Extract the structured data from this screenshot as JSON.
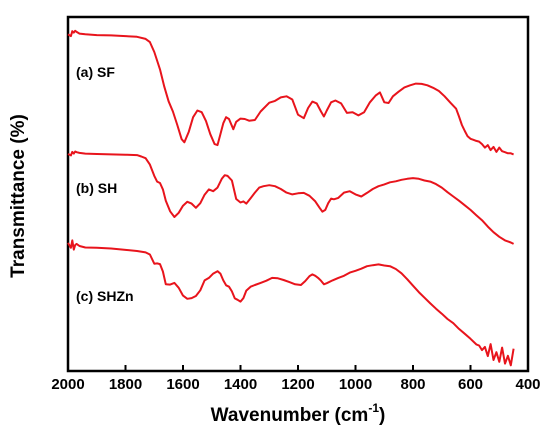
{
  "chart_data": {
    "type": "line",
    "title": "",
    "xlabel": "Wavenumber (cm",
    "xlabel_sup": "-1",
    "xlabel_close": ")",
    "ylabel": "Transmittance (%)",
    "xlim": [
      2000,
      400
    ],
    "x_reversed": true,
    "ylim": [
      0,
      100
    ],
    "y_ticks_shown": false,
    "grid": false,
    "legend": "none",
    "line_color": "#e8141c",
    "x_ticks": [
      2000,
      1800,
      1600,
      1400,
      1200,
      1000,
      800,
      600,
      400
    ],
    "series": [
      {
        "name": "(a) SF",
        "x": [
          2000,
          1990,
          1985,
          1980,
          1975,
          1970,
          1960,
          1940,
          1900,
          1850,
          1800,
          1760,
          1730,
          1715,
          1700,
          1680,
          1665,
          1650,
          1635,
          1620,
          1605,
          1595,
          1580,
          1565,
          1550,
          1535,
          1520,
          1505,
          1490,
          1480,
          1470,
          1460,
          1450,
          1440,
          1425,
          1415,
          1400,
          1385,
          1370,
          1350,
          1330,
          1300,
          1280,
          1260,
          1240,
          1220,
          1200,
          1180,
          1165,
          1150,
          1135,
          1120,
          1110,
          1100,
          1085,
          1070,
          1050,
          1030,
          1010,
          990,
          970,
          950,
          930,
          915,
          900,
          885,
          870,
          850,
          830,
          810,
          790,
          770,
          750,
          730,
          710,
          690,
          670,
          650,
          640,
          630,
          620,
          610,
          600,
          590,
          580,
          570,
          560,
          550,
          540,
          530,
          520,
          510,
          500,
          490,
          480,
          470,
          460,
          450
        ],
        "values": [
          95.1,
          94.6,
          96,
          95.6,
          96.1,
          95.8,
          95.3,
          95.1,
          94.9,
          94.8,
          94.6,
          94.4,
          93.8,
          92.9,
          90.1,
          85.2,
          80.3,
          76.2,
          73.3,
          69.5,
          65.5,
          64.6,
          67.6,
          71.7,
          73.6,
          73.1,
          70.6,
          66.9,
          64.1,
          63.8,
          66.9,
          70,
          71.7,
          71.2,
          68.3,
          70.4,
          71.3,
          71.2,
          70.7,
          70.9,
          73.3,
          75.8,
          76.3,
          77.3,
          77.6,
          76.7,
          72.4,
          71.4,
          74.3,
          76.1,
          75.6,
          73.3,
          71.9,
          73.6,
          75.9,
          76.4,
          75.6,
          72.9,
          73.1,
          72.2,
          73.1,
          75.9,
          77.8,
          78.7,
          75.9,
          75.7,
          77.6,
          78.9,
          80.1,
          80.7,
          81.2,
          81.1,
          80.7,
          80,
          79.1,
          77.6,
          75.8,
          74.1,
          71.9,
          69.5,
          67.8,
          66.3,
          65.6,
          65.3,
          65,
          64.8,
          64.1,
          63.1,
          63.8,
          62.4,
          63.3,
          61.9,
          63.1,
          62.1,
          61.8,
          61.5,
          61.5,
          61.2
        ]
      },
      {
        "name": "(b) SH",
        "x": [
          2000,
          1990,
          1985,
          1980,
          1975,
          1970,
          1960,
          1940,
          1900,
          1850,
          1800,
          1760,
          1745,
          1730,
          1715,
          1700,
          1690,
          1680,
          1670,
          1660,
          1645,
          1630,
          1615,
          1600,
          1585,
          1570,
          1555,
          1540,
          1525,
          1510,
          1495,
          1480,
          1465,
          1455,
          1445,
          1430,
          1415,
          1400,
          1390,
          1380,
          1365,
          1350,
          1335,
          1320,
          1300,
          1280,
          1260,
          1240,
          1220,
          1200,
          1180,
          1160,
          1140,
          1125,
          1115,
          1105,
          1095,
          1085,
          1075,
          1060,
          1040,
          1020,
          1000,
          980,
          960,
          940,
          920,
          900,
          880,
          860,
          840,
          820,
          800,
          780,
          760,
          740,
          720,
          700,
          680,
          660,
          640,
          620,
          600,
          580,
          560,
          540,
          520,
          500,
          480,
          460,
          450
        ],
        "values": [
          61.3,
          60.9,
          61.9,
          61.4,
          62,
          61.8,
          61.6,
          61.4,
          61.3,
          61.2,
          61.1,
          61,
          60.6,
          60.1,
          58.3,
          55.1,
          53.5,
          53.1,
          51.3,
          48.1,
          45.1,
          43.5,
          44.7,
          46.7,
          47.8,
          47.3,
          46.1,
          47.4,
          49.8,
          51.3,
          50.8,
          51.8,
          54.3,
          55.3,
          55.1,
          53.8,
          48.6,
          47.6,
          47.9,
          47.3,
          48.8,
          50.4,
          51.8,
          52.2,
          52.5,
          52.2,
          51.4,
          50.4,
          49.9,
          50.2,
          50.3,
          49.5,
          47.9,
          46.1,
          45,
          45.5,
          47.4,
          48.7,
          48.5,
          48.9,
          50.4,
          50.8,
          49.9,
          49.3,
          50.3,
          51.4,
          52.2,
          52.7,
          53.3,
          53.6,
          54,
          54.3,
          54.5,
          54.3,
          53.8,
          53.5,
          52.8,
          51.8,
          50.5,
          49.3,
          48.1,
          46.8,
          45.5,
          44,
          42.6,
          40.8,
          39.2,
          37.9,
          36.9,
          36.3,
          35.9
        ]
      },
      {
        "name": "(c) SHZn",
        "x": [
          2000,
          1990,
          1985,
          1980,
          1975,
          1970,
          1960,
          1940,
          1900,
          1850,
          1800,
          1760,
          1730,
          1715,
          1700,
          1690,
          1680,
          1670,
          1660,
          1645,
          1630,
          1615,
          1600,
          1585,
          1570,
          1555,
          1540,
          1525,
          1510,
          1495,
          1480,
          1470,
          1460,
          1450,
          1440,
          1430,
          1420,
          1410,
          1400,
          1390,
          1380,
          1365,
          1350,
          1330,
          1310,
          1290,
          1270,
          1250,
          1230,
          1210,
          1190,
          1175,
          1160,
          1150,
          1140,
          1130,
          1120,
          1110,
          1100,
          1080,
          1060,
          1040,
          1020,
          1000,
          980,
          960,
          940,
          920,
          900,
          880,
          860,
          840,
          820,
          800,
          780,
          760,
          740,
          720,
          700,
          680,
          660,
          640,
          620,
          600,
          580,
          570,
          560,
          550,
          540,
          530,
          520,
          510,
          500,
          490,
          480,
          470,
          460,
          450
        ],
        "values": [
          36.2,
          34.8,
          36.9,
          34.3,
          35.6,
          35.9,
          35.3,
          34.9,
          34.8,
          34.6,
          34.2,
          33.9,
          33.5,
          32.9,
          30.3,
          30.4,
          30.2,
          28.1,
          24.5,
          24.4,
          24.9,
          23.5,
          21.3,
          20.4,
          20.6,
          21.2,
          22.8,
          25.6,
          26.3,
          27.5,
          28.2,
          27.5,
          25.6,
          24.2,
          23.8,
          22.5,
          20.5,
          20.1,
          19.6,
          20.6,
          22.7,
          23.8,
          24.3,
          24.9,
          25.5,
          26.3,
          26.2,
          25.7,
          25.1,
          24.5,
          24.3,
          25.4,
          26.8,
          27.3,
          26.9,
          26.3,
          25.5,
          24.5,
          24.8,
          25.6,
          26.3,
          26.9,
          27.8,
          28.3,
          28.9,
          29.6,
          29.9,
          30.1,
          29.8,
          29.6,
          28.8,
          27.6,
          25.9,
          24.1,
          22.3,
          20.7,
          19.1,
          17.6,
          16.2,
          14.7,
          13.5,
          11.9,
          10.5,
          9.1,
          7.5,
          7.2,
          5.9,
          6.8,
          4.2,
          7.6,
          3.1,
          5.3,
          2.6,
          6.6,
          2.1,
          4.3,
          1.6,
          6.3
        ]
      }
    ]
  }
}
